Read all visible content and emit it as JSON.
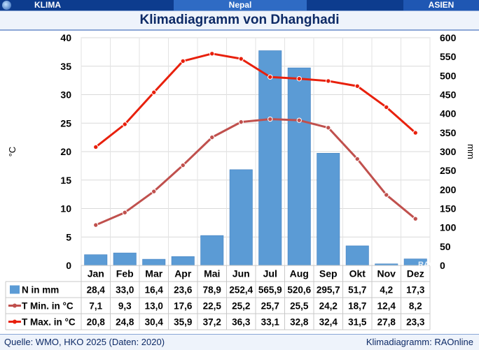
{
  "header": {
    "left_label": "KLIMA",
    "center_label": "Nepal",
    "right_label": "ASIEN",
    "title": "Klimadiagramm von Dhanghadi"
  },
  "footer": {
    "source": "Quelle: WMO, HKO 2025 (Daten: 2020)",
    "credit": "Klimadiagramm: RAOnline"
  },
  "watermark": "RAO",
  "colors": {
    "header_bg": "#0d3c8e",
    "bar": "#5b9bd5",
    "t_min": "#c0504d",
    "t_max": "#e8200c"
  },
  "chart_data": {
    "type": "bar",
    "categories": [
      "Jan",
      "Feb",
      "Mar",
      "Apr",
      "Mai",
      "Jun",
      "Jul",
      "Aug",
      "Sep",
      "Okt",
      "Nov",
      "Dez"
    ],
    "ylabel_left": "°C",
    "ylabel_right": "mm",
    "ylim_left": [
      0,
      40
    ],
    "ylim_right": [
      0,
      600
    ],
    "yticks_left": [
      0,
      5,
      10,
      15,
      20,
      25,
      30,
      35,
      40
    ],
    "yticks_right": [
      0,
      50,
      100,
      150,
      200,
      250,
      300,
      350,
      400,
      450,
      500,
      550,
      600
    ],
    "series": [
      {
        "name": "N in mm",
        "kind": "bar",
        "axis": "right",
        "values": [
          28.4,
          33.0,
          16.4,
          23.6,
          78.9,
          252.4,
          565.9,
          520.6,
          295.7,
          51.7,
          4.2,
          17.3
        ],
        "labels": [
          "28,4",
          "33,0",
          "16,4",
          "23,6",
          "78,9",
          "252,4",
          "565,9",
          "520,6",
          "295,7",
          "51,7",
          "4,2",
          "17,3"
        ]
      },
      {
        "name": "T Min. in °C",
        "kind": "line",
        "axis": "left",
        "values": [
          7.1,
          9.3,
          13.0,
          17.6,
          22.5,
          25.2,
          25.7,
          25.5,
          24.2,
          18.7,
          12.4,
          8.2
        ],
        "labels": [
          "7,1",
          "9,3",
          "13,0",
          "17,6",
          "22,5",
          "25,2",
          "25,7",
          "25,5",
          "24,2",
          "18,7",
          "12,4",
          "8,2"
        ]
      },
      {
        "name": "T Max. in °C",
        "kind": "line",
        "axis": "left",
        "values": [
          20.8,
          24.8,
          30.4,
          35.9,
          37.2,
          36.3,
          33.1,
          32.8,
          32.4,
          31.5,
          27.8,
          23.3
        ],
        "labels": [
          "20,8",
          "24,8",
          "30,4",
          "35,9",
          "37,2",
          "36,3",
          "33,1",
          "32,8",
          "32,4",
          "31,5",
          "27,8",
          "23,3"
        ]
      }
    ]
  }
}
